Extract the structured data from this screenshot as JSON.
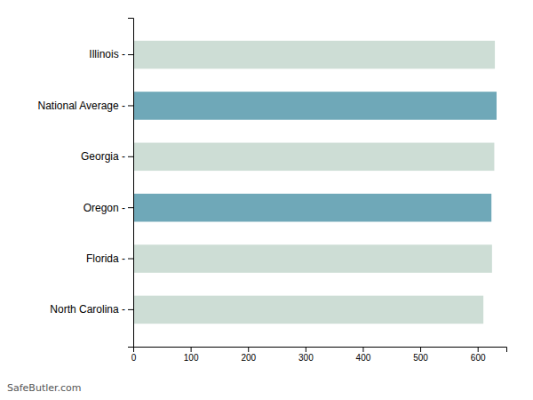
{
  "chart_data": {
    "type": "bar",
    "orientation": "horizontal",
    "categories": [
      "Illinois -",
      "National Average -",
      "Georgia -",
      "Oregon -",
      "Florida -",
      "North Carolina -"
    ],
    "values": [
      630,
      633,
      629,
      624,
      625,
      610
    ],
    "colors": [
      "#cdddd5",
      "#6fa8b8",
      "#cdddd5",
      "#6fa8b8",
      "#cdddd5",
      "#cdddd5"
    ],
    "xlim": [
      0,
      650
    ],
    "xticks": [
      0,
      100,
      200,
      300,
      400,
      500,
      600
    ],
    "grid": false,
    "annotations": [
      "SafeButler.com"
    ]
  }
}
